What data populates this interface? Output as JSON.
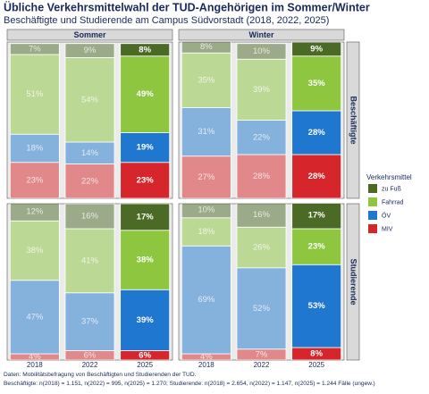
{
  "chart_data": {
    "type": "bar",
    "stacked": true,
    "title": "Übliche Verkehrsmittelwahl der TUD-Angehörigen im Sommer/Winter",
    "subtitle": "Beschäftigte und Studierende am Campus Südvorstadt (2018, 2022, 2025)",
    "columns": [
      "Sommer",
      "Winter"
    ],
    "rows": [
      "Beschäftigte",
      "Studierende"
    ],
    "categories": [
      "2018",
      "2022",
      "2025"
    ],
    "legend_title": "Verkehrsmittel",
    "series": [
      {
        "name": "MIV",
        "color": "#d7262b"
      },
      {
        "name": "ÖV",
        "color": "#1f77d0"
      },
      {
        "name": "Fahrrad",
        "color": "#8ec63f"
      },
      {
        "name": "zu Fuß",
        "color": "#4b6a25"
      }
    ],
    "ylim": [
      0,
      100
    ],
    "panels": [
      [
        {
          "values": [
            [
              23,
              22,
              23
            ],
            [
              18,
              14,
              19
            ],
            [
              51,
              54,
              49
            ],
            [
              7,
              9,
              8
            ]
          ],
          "value_labels": [
            [
              "23%",
              "22%",
              "23%"
            ],
            [
              "18%",
              "14%",
              "19%"
            ],
            [
              "51%",
              "54%",
              "49%"
            ],
            [
              "7%",
              "9%",
              "8%"
            ]
          ]
        },
        {
          "values": [
            [
              27,
              28,
              28
            ],
            [
              31,
              22,
              28
            ],
            [
              35,
              39,
              35
            ],
            [
              8,
              10,
              9
            ]
          ],
          "value_labels": [
            [
              "27%",
              "28%",
              "28%"
            ],
            [
              "31%",
              "22%",
              "28%"
            ],
            [
              "35%",
              "39%",
              "35%"
            ],
            [
              "8%",
              "10%",
              "9%"
            ]
          ]
        }
      ],
      [
        {
          "values": [
            [
              4,
              6,
              6
            ],
            [
              47,
              37,
              39
            ],
            [
              38,
              41,
              38
            ],
            [
              12,
              16,
              17
            ]
          ],
          "value_labels": [
            [
              "4%",
              "6%",
              "6%"
            ],
            [
              "47%",
              "37%",
              "39%"
            ],
            [
              "38%",
              "41%",
              "38%"
            ],
            [
              "12%",
              "16%",
              "17%"
            ]
          ]
        },
        {
          "values": [
            [
              4,
              7,
              8
            ],
            [
              69,
              52,
              53
            ],
            [
              18,
              26,
              23
            ],
            [
              10,
              16,
              17
            ]
          ],
          "value_labels": [
            [
              "4%",
              "7%",
              "8%"
            ],
            [
              "69%",
              "52%",
              "53%"
            ],
            [
              "18%",
              "26%",
              "23%"
            ],
            [
              "10%",
              "16%",
              "17%"
            ]
          ]
        }
      ]
    ],
    "footnotes": [
      "Daten: Mobilitätsbefragung von Beschäftigten und Studierenden der TUD.",
      "Beschäftigte: n(2018) = 1.151, n(2022) = 995, n(2025) = 1.270; Studierende: n(2018) = 2.654, n(2022) = 1.147, n(2025) = 1.244 Fälle (ungew.)"
    ]
  }
}
